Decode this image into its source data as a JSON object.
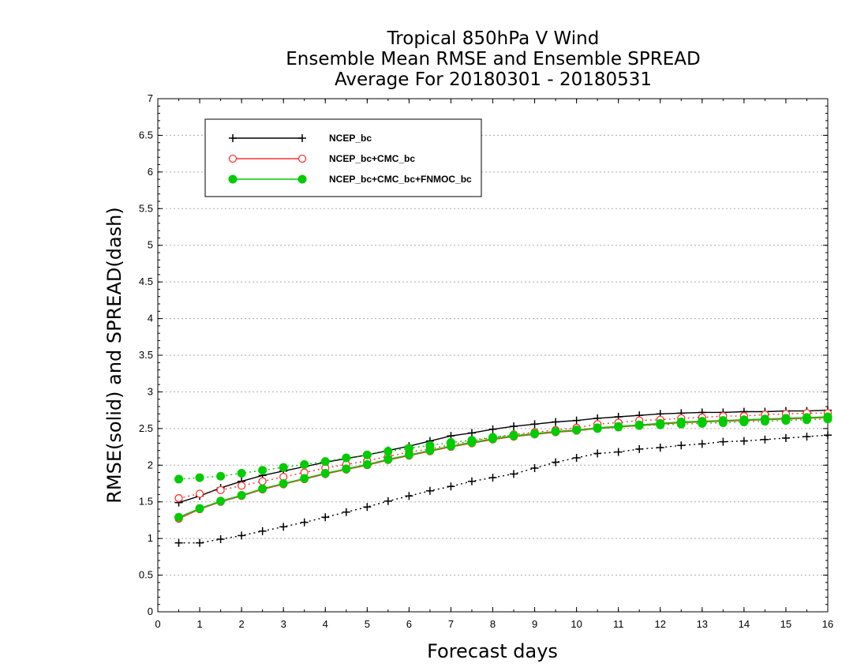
{
  "chart_data": {
    "type": "line",
    "title_lines": [
      "Tropical 850hPa V Wind",
      "Ensemble Mean RMSE and Ensemble SPREAD",
      "Average For 20180301 - 20180531"
    ],
    "xlabel": "Forecast days",
    "ylabel": "RMSE(solid) and SPREAD(dash)",
    "xlim": [
      0,
      16
    ],
    "ylim": [
      0,
      7
    ],
    "x_ticks": [
      "0",
      "1",
      "2",
      "3",
      "4",
      "5",
      "6",
      "7",
      "8",
      "9",
      "10",
      "11",
      "12",
      "13",
      "14",
      "15",
      "16"
    ],
    "y_ticks": [
      "0",
      "0.5",
      "1",
      "1.5",
      "2",
      "2.5",
      "3",
      "3.5",
      "4",
      "4.5",
      "5",
      "5.5",
      "6",
      "6.5",
      "7"
    ],
    "grid": "horizontal dotted",
    "legend_position": "top-left",
    "x": [
      0.5,
      1,
      1.5,
      2,
      2.5,
      3,
      3.5,
      4,
      4.5,
      5,
      5.5,
      6,
      6.5,
      7,
      7.5,
      8,
      8.5,
      9,
      9.5,
      10,
      10.5,
      11,
      11.5,
      12,
      12.5,
      13,
      13.5,
      14,
      14.5,
      15,
      15.5,
      16
    ],
    "series": [
      {
        "name": "NCEP_bc",
        "color": "#000000",
        "marker": "plus",
        "rmse": [
          1.49,
          1.58,
          1.69,
          1.78,
          1.86,
          1.92,
          1.98,
          2.04,
          2.09,
          2.14,
          2.2,
          2.26,
          2.33,
          2.4,
          2.44,
          2.49,
          2.53,
          2.56,
          2.59,
          2.61,
          2.64,
          2.66,
          2.68,
          2.7,
          2.71,
          2.72,
          2.72,
          2.73,
          2.73,
          2.74,
          2.74,
          2.75
        ],
        "spread": [
          0.94,
          0.94,
          0.99,
          1.04,
          1.1,
          1.16,
          1.22,
          1.29,
          1.36,
          1.43,
          1.51,
          1.58,
          1.65,
          1.71,
          1.78,
          1.83,
          1.88,
          1.96,
          2.04,
          2.1,
          2.16,
          2.18,
          2.22,
          2.24,
          2.27,
          2.29,
          2.32,
          2.33,
          2.35,
          2.37,
          2.39,
          2.41
        ]
      },
      {
        "name": "NCEP_bc+CMC_bc",
        "color": "#ff3333",
        "marker": "open-circle",
        "rmse": [
          1.27,
          1.4,
          1.5,
          1.58,
          1.67,
          1.74,
          1.81,
          1.88,
          1.94,
          2.0,
          2.07,
          2.13,
          2.19,
          2.25,
          2.3,
          2.35,
          2.39,
          2.42,
          2.45,
          2.47,
          2.5,
          2.52,
          2.54,
          2.56,
          2.58,
          2.59,
          2.6,
          2.61,
          2.62,
          2.63,
          2.64,
          2.65
        ],
        "spread": [
          1.55,
          1.61,
          1.66,
          1.72,
          1.78,
          1.84,
          1.9,
          1.96,
          2.01,
          2.06,
          2.12,
          2.18,
          2.22,
          2.28,
          2.33,
          2.38,
          2.42,
          2.45,
          2.48,
          2.51,
          2.56,
          2.58,
          2.61,
          2.62,
          2.64,
          2.65,
          2.67,
          2.67,
          2.69,
          2.7,
          2.71,
          2.71
        ]
      },
      {
        "name": "NCEP_bc+CMC_bc+FNMOC_bc",
        "color": "#00cc00",
        "marker": "filled-circle",
        "rmse": [
          1.29,
          1.41,
          1.51,
          1.59,
          1.68,
          1.75,
          1.82,
          1.89,
          1.95,
          2.01,
          2.08,
          2.14,
          2.2,
          2.26,
          2.31,
          2.36,
          2.4,
          2.43,
          2.46,
          2.48,
          2.51,
          2.53,
          2.55,
          2.57,
          2.59,
          2.6,
          2.61,
          2.62,
          2.63,
          2.64,
          2.65,
          2.66
        ],
        "spread": [
          1.81,
          1.83,
          1.85,
          1.89,
          1.93,
          1.97,
          2.01,
          2.05,
          2.1,
          2.14,
          2.19,
          2.23,
          2.27,
          2.31,
          2.34,
          2.38,
          2.41,
          2.43,
          2.46,
          2.48,
          2.5,
          2.52,
          2.54,
          2.55,
          2.56,
          2.57,
          2.58,
          2.59,
          2.6,
          2.61,
          2.62,
          2.63
        ]
      }
    ]
  }
}
